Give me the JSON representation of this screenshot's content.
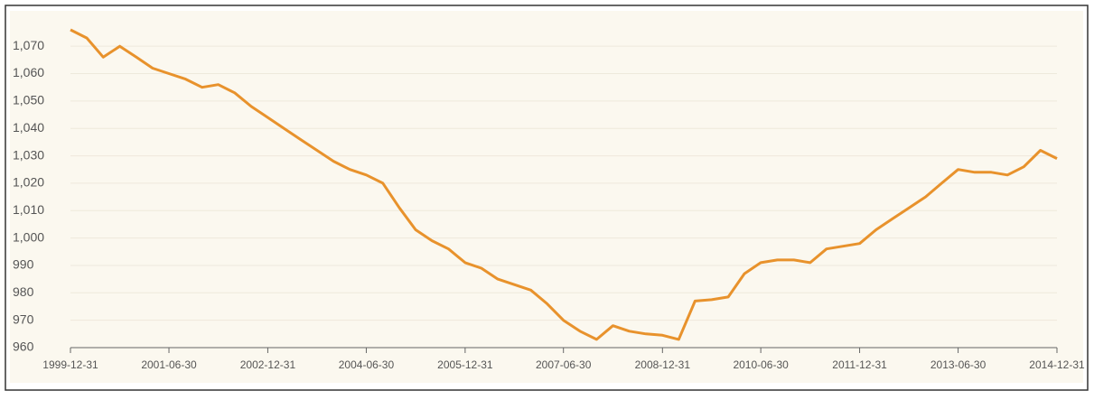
{
  "chart_data": {
    "type": "line",
    "x": [
      "1999-12-31",
      "2000-03-31",
      "2000-06-30",
      "2000-09-30",
      "2000-12-31",
      "2001-03-31",
      "2001-06-30",
      "2001-09-30",
      "2001-12-31",
      "2002-03-31",
      "2002-06-30",
      "2002-09-30",
      "2002-12-31",
      "2003-03-31",
      "2003-06-30",
      "2003-09-30",
      "2003-12-31",
      "2004-03-31",
      "2004-06-30",
      "2004-09-30",
      "2004-12-31",
      "2005-03-31",
      "2005-06-30",
      "2005-09-30",
      "2005-12-31",
      "2006-03-31",
      "2006-06-30",
      "2006-09-30",
      "2006-12-31",
      "2007-03-31",
      "2007-06-30",
      "2007-09-30",
      "2007-12-31",
      "2008-03-31",
      "2008-06-30",
      "2008-09-30",
      "2008-12-31",
      "2009-03-31",
      "2009-06-30",
      "2009-09-30",
      "2009-12-31",
      "2010-03-31",
      "2010-06-30",
      "2010-09-30",
      "2010-12-31",
      "2011-03-31",
      "2011-06-30",
      "2011-09-30",
      "2011-12-31",
      "2012-03-31",
      "2012-06-30",
      "2012-09-30",
      "2012-12-31",
      "2013-03-31",
      "2013-06-30",
      "2013-09-30",
      "2013-12-31",
      "2014-03-31",
      "2014-06-30",
      "2014-09-30",
      "2014-12-31"
    ],
    "series": [
      {
        "color": "#e8922c",
        "values": [
          1076,
          1073,
          1066,
          1070,
          1066,
          1062,
          1060,
          1058,
          1055,
          1056,
          1053,
          1048,
          1044,
          1040,
          1036,
          1032,
          1028,
          1025,
          1023,
          1020,
          1011,
          1003,
          999,
          996,
          991,
          989,
          985,
          983,
          981,
          976,
          970,
          966,
          963,
          968,
          966,
          965,
          964.5,
          963,
          977,
          977.5,
          978.5,
          987,
          991,
          992,
          992,
          991,
          996,
          997,
          998,
          1003,
          1007,
          1011,
          1015,
          1020,
          1025,
          1024,
          1024,
          1023,
          1026,
          1032,
          1029
        ]
      }
    ],
    "xlim": [
      "1999-12-31",
      "2014-12-31"
    ],
    "xticks": [
      "1999-12-31",
      "2001-06-30",
      "2002-12-31",
      "2004-06-30",
      "2005-12-31",
      "2007-06-30",
      "2008-12-31",
      "2010-06-30",
      "2011-12-31",
      "2013-06-30",
      "2014-12-31"
    ],
    "ylim": [
      960,
      1075
    ],
    "yticks": [
      960,
      970,
      980,
      990,
      {
        "value": 1000,
        "label": "1,000"
      },
      {
        "value": 1010,
        "label": "1,010"
      },
      {
        "value": 1020,
        "label": "1,020"
      },
      {
        "value": 1030,
        "label": "1,030"
      },
      {
        "value": 1040,
        "label": "1,040"
      },
      {
        "value": 1050,
        "label": "1,050"
      },
      {
        "value": 1060,
        "label": "1,060"
      },
      {
        "value": 1070,
        "label": "1,070"
      }
    ],
    "grid": true
  }
}
